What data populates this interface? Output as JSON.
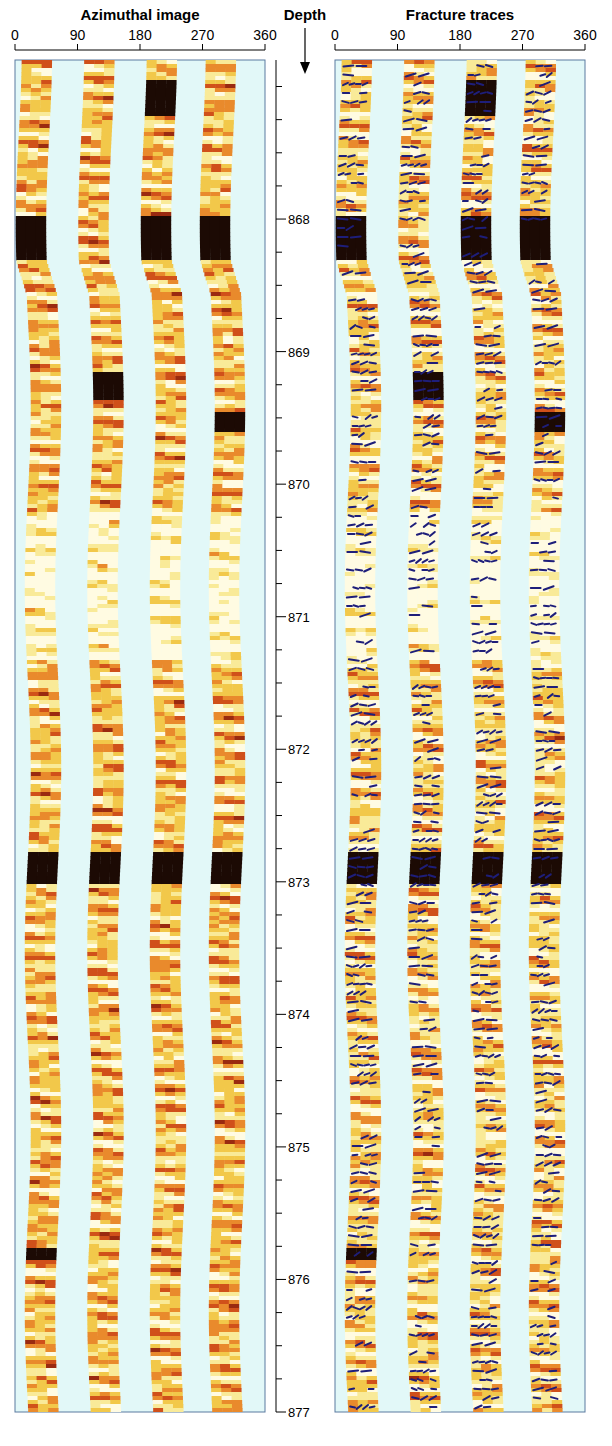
{
  "chart_data": {
    "type": "borehole_image",
    "panels": [
      {
        "title": "Azimuthal image",
        "type": "image",
        "xlim": [
          0,
          360
        ],
        "xticks": [
          0,
          90,
          180,
          270,
          360
        ]
      },
      {
        "title": "Fracture traces",
        "type": "traces",
        "xlim": [
          0,
          360
        ],
        "xticks": [
          0,
          90,
          180,
          270,
          360
        ]
      }
    ],
    "ylabel": "Depth",
    "ylim": [
      866.8,
      877
    ],
    "yticks": [
      868,
      869,
      870,
      871,
      872,
      873,
      874,
      875,
      876,
      877
    ],
    "minor_yticks": [
      867,
      867.25,
      867.5,
      867.75,
      868.25,
      868.5,
      868.75,
      869.25,
      869.5,
      869.75,
      870.25,
      870.5,
      870.75,
      871.25,
      871.5,
      871.75,
      872.25,
      872.5,
      872.75,
      873.25,
      873.5,
      873.75,
      874.25,
      874.5,
      874.75,
      875.25,
      875.5,
      875.75,
      876.25,
      876.5,
      876.75
    ],
    "pad_azimuths": [
      40,
      130,
      220,
      305
    ],
    "conductive_bands": [
      {
        "top": 866.95,
        "bottom": 867.2,
        "pads": [
          2
        ]
      },
      {
        "top": 867.95,
        "bottom": 868.3,
        "pads": [
          0,
          2,
          3
        ]
      },
      {
        "top": 869.15,
        "bottom": 869.35,
        "pads": [
          1
        ]
      },
      {
        "top": 869.45,
        "bottom": 869.6,
        "pads": [
          3
        ]
      },
      {
        "top": 872.75,
        "bottom": 873.0,
        "pads": [
          0,
          1,
          2,
          3
        ]
      },
      {
        "top": 875.75,
        "bottom": 875.85,
        "pads": [
          0
        ]
      }
    ],
    "resistive_bands": [
      {
        "top": 870.2,
        "bottom": 871.3,
        "pads": [
          0,
          1,
          2,
          3
        ]
      }
    ]
  }
}
